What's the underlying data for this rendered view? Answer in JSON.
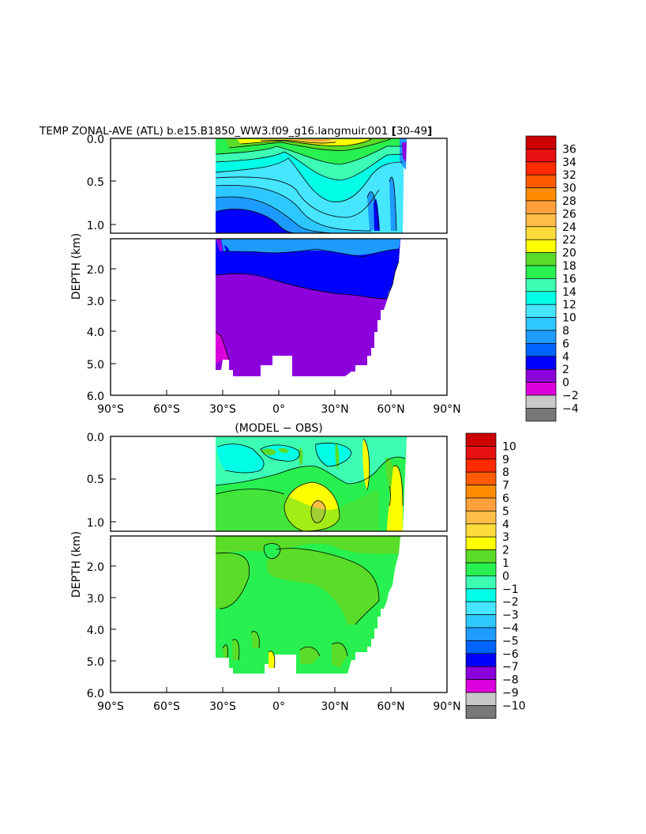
{
  "title": "TEMP ZONAL-AVE (ATL) b.e15.B1850_WW3.f09_g16.langmuir.001",
  "title_years": "30-49",
  "chart_data": [
    {
      "type": "heatmap",
      "title": "TEMP ZONAL-AVE (ATL) b.e15.B1850_WW3.f09_g16.langmuir.001 [30-49]",
      "ylabel": "DEPTH (km)",
      "xlim": [
        -90,
        90
      ],
      "ylim_upper": [
        0.0,
        1.1
      ],
      "ylim_lower": [
        1.1,
        6.0
      ],
      "x_ticks": [
        "90°S",
        "60°S",
        "30°S",
        "0°",
        "30°N",
        "60°N",
        "90°N"
      ],
      "y_ticks_upper": [
        "0.0",
        "0.5",
        "1.0"
      ],
      "y_ticks_lower": [
        "2.0",
        "3.0",
        "4.0",
        "5.0",
        "6.0"
      ],
      "data_extent_lat": [
        -34,
        66
      ],
      "colorbar_levels": [
        "36",
        "34",
        "32",
        "30",
        "28",
        "26",
        "24",
        "22",
        "20",
        "18",
        "16",
        "14",
        "12",
        "10",
        "8",
        "6",
        "4",
        "2",
        "0",
        "−2",
        "−4"
      ],
      "colorbar_colors": [
        "#cc0000",
        "#e81010",
        "#ff2a00",
        "#ff5a00",
        "#ff8c00",
        "#ffa03c",
        "#ffbe46",
        "#ffdc3c",
        "#ffff00",
        "#5adc28",
        "#28f050",
        "#3cffb4",
        "#00ffe6",
        "#46e6ff",
        "#2dc8ff",
        "#1e9bff",
        "#0064ff",
        "#0000ff",
        "#8c00dc",
        "#dc00dc",
        "#c8c8c8",
        "#787878"
      ]
    },
    {
      "type": "heatmap",
      "title": "(MODEL − OBS)",
      "ylabel": "DEPTH (km)",
      "xlim": [
        -90,
        90
      ],
      "ylim_upper": [
        0.0,
        1.1
      ],
      "ylim_lower": [
        1.1,
        6.0
      ],
      "x_ticks": [
        "90°S",
        "60°S",
        "30°S",
        "0°",
        "30°N",
        "60°N",
        "90°N"
      ],
      "y_ticks_upper": [
        "0.0",
        "0.5",
        "1.0"
      ],
      "y_ticks_lower": [
        "2.0",
        "3.0",
        "4.0",
        "5.0",
        "6.0"
      ],
      "data_extent_lat": [
        -34,
        66
      ],
      "colorbar_levels": [
        "10",
        "9",
        "8",
        "7",
        "6",
        "5",
        "4",
        "3",
        "2",
        "1",
        "0",
        "−1",
        "−2",
        "−3",
        "−4",
        "−5",
        "−6",
        "−7",
        "−8",
        "−9",
        "−10"
      ],
      "colorbar_colors": [
        "#cc0000",
        "#e81010",
        "#ff2a00",
        "#ff5a00",
        "#ff8c00",
        "#ffa03c",
        "#ffbe46",
        "#ffdc3c",
        "#ffff00",
        "#5adc28",
        "#28f050",
        "#3cffb4",
        "#00ffe6",
        "#46e6ff",
        "#2dc8ff",
        "#1e9bff",
        "#0064ff",
        "#0000ff",
        "#8c00dc",
        "#dc00dc",
        "#c8c8c8",
        "#787878"
      ]
    }
  ]
}
